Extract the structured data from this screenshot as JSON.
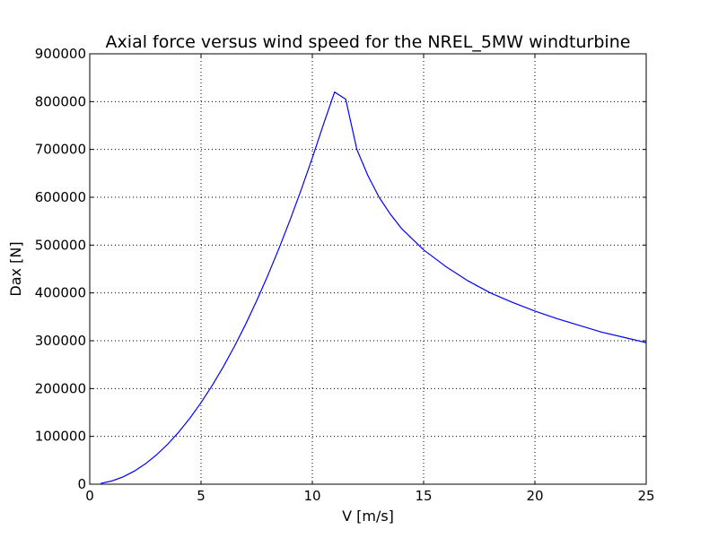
{
  "chart_data": {
    "type": "line",
    "title": "Axial force versus wind speed for the NREL_5MW windturbine",
    "xlabel": "V [m/s]",
    "ylabel": "Dax [N]",
    "xlim": [
      0,
      25
    ],
    "ylim": [
      0,
      900000
    ],
    "xticks": [
      0,
      5,
      10,
      15,
      20,
      25
    ],
    "xtick_labels": [
      "0",
      "5",
      "10",
      "15",
      "20",
      "25"
    ],
    "yticks": [
      0,
      100000,
      200000,
      300000,
      400000,
      500000,
      600000,
      700000,
      800000,
      900000
    ],
    "ytick_labels": [
      "0",
      "100000",
      "200000",
      "300000",
      "400000",
      "500000",
      "600000",
      "700000",
      "800000",
      "900000"
    ],
    "grid": true,
    "series": [
      {
        "color": "#0000ff",
        "x": [
          0.5,
          1,
          1.5,
          2,
          2.5,
          3,
          3.5,
          4,
          4.5,
          5,
          5.5,
          6,
          6.5,
          7,
          7.5,
          8,
          8.5,
          9,
          9.5,
          10,
          10.5,
          11,
          11.5,
          12,
          12.5,
          13,
          13.5,
          14,
          15,
          16,
          17,
          18,
          19,
          20,
          21,
          22,
          23,
          24,
          25
        ],
        "values": [
          1700,
          6800,
          15300,
          27300,
          42600,
          61400,
          83500,
          109100,
          138000,
          170500,
          206300,
          245500,
          288100,
          334100,
          383600,
          436500,
          492800,
          552600,
          615800,
          682300,
          752400,
          820000,
          805000,
          700000,
          645000,
          600000,
          565000,
          535000,
          490000,
          455000,
          425000,
          400000,
          380000,
          362000,
          346000,
          332000,
          318000,
          307000,
          296000
        ]
      }
    ]
  }
}
